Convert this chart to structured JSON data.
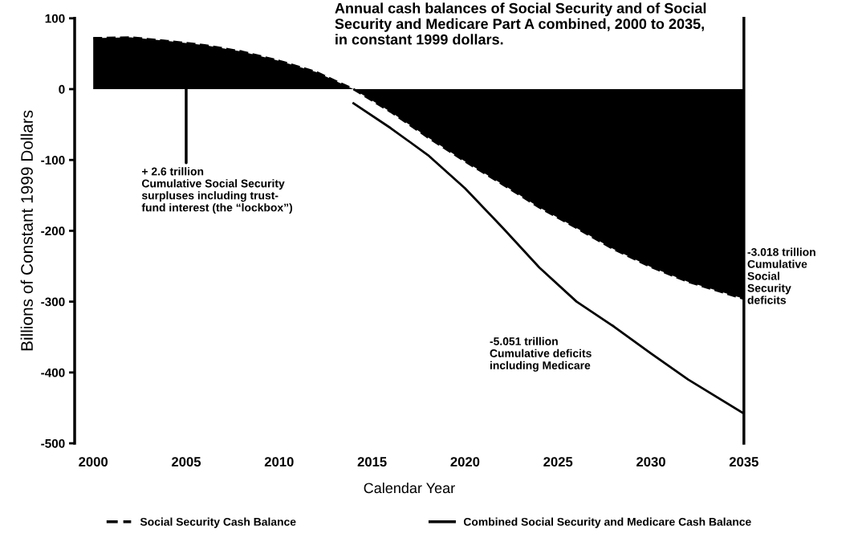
{
  "chart_data": {
    "type": "line",
    "title": "Annual cash balances of Social Security and of Social\nSecurity and Medicare Part A combined, 2000 to 2035,\nin constant 1999 dollars.",
    "xlabel": "Calendar Year",
    "ylabel": "Billions of Constant 1999 Dollars",
    "x": [
      2000,
      2002,
      2004,
      2006,
      2008,
      2010,
      2012,
      2013,
      2014,
      2016,
      2018,
      2020,
      2022,
      2024,
      2026,
      2028,
      2030,
      2032,
      2035
    ],
    "series": [
      {
        "name": "Social Security Cash Balance",
        "type": "area",
        "color": "#000000",
        "line_style": "dashed",
        "values": [
          72,
          73,
          68,
          62,
          53,
          40,
          24,
          12,
          0,
          -32,
          -68,
          -102,
          -134,
          -167,
          -196,
          -226,
          -251,
          -272,
          -296
        ]
      },
      {
        "name": "Combined Social Security and Medicare Cash Balance",
        "color": "#000000",
        "line_style": "solid",
        "values": [
          null,
          null,
          null,
          null,
          null,
          null,
          null,
          null,
          -20,
          -55,
          -93,
          -140,
          -195,
          -252,
          -300,
          -335,
          -373,
          -410,
          -458
        ]
      }
    ],
    "xlim": [
      1999,
      2035
    ],
    "xticks": [
      2000,
      2005,
      2010,
      2015,
      2020,
      2025,
      2030,
      2035
    ],
    "ylim": [
      -500,
      100
    ],
    "yticks": [
      -500,
      -400,
      -300,
      -200,
      -100,
      0,
      100
    ],
    "annotations": [
      {
        "text": "+ 2.6 trillion\nCumulative Social Security\nsurpluses including trust-\nfund interest (the “lockbox”)",
        "x": 2005,
        "y": 0
      },
      "-3.018 trillion\nCumulative\nSocial\nSecurity\ndeficits",
      "-5.051 trillion\nCumulative deficits\nincluding Medicare"
    ],
    "legend": "bottom",
    "grid": false
  }
}
